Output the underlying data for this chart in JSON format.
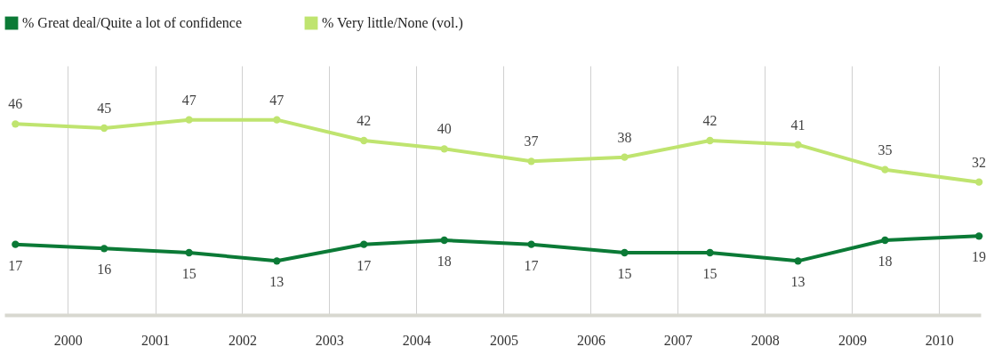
{
  "chart_data": {
    "type": "line",
    "x": [
      "1999-05-26",
      "2000-06-01",
      "2001-05-23",
      "2002-05-26",
      "2003-05-26",
      "2004-04-27",
      "2005-04-27",
      "2006-05-23",
      "2007-05-16",
      "2008-05-19",
      "2009-05-19",
      "2010-06-17"
    ],
    "series": [
      {
        "name": "% Great deal/Quite a lot of confidence",
        "color": "#0b7a36",
        "values": [
          17,
          16,
          15,
          13,
          17,
          18,
          17,
          15,
          15,
          13,
          18,
          19
        ]
      },
      {
        "name": "% Very little/None (vol.)",
        "color": "#bfe46f",
        "values": [
          46,
          45,
          47,
          47,
          42,
          40,
          37,
          38,
          42,
          41,
          35,
          32
        ]
      }
    ],
    "xlim": [
      "1999-04-10",
      "2010-06-24"
    ],
    "xticks": [
      "2000",
      "2001",
      "2002",
      "2003",
      "2004",
      "2005",
      "2006",
      "2007",
      "2008",
      "2009",
      "2010"
    ],
    "ylim": [
      0,
      60
    ],
    "tick_labels": "x",
    "grid": "x",
    "legend": "top",
    "marker": "circle",
    "data_labels": true
  }
}
